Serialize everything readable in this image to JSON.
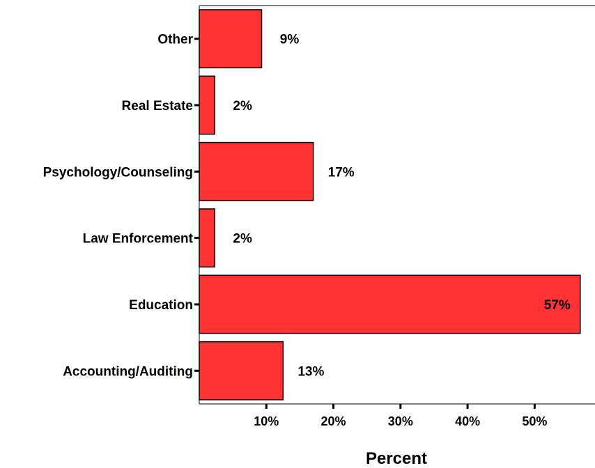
{
  "chart_data": {
    "type": "bar",
    "orientation": "horizontal",
    "categories": [
      "Other",
      "Real Estate",
      "Psychology/Counseling",
      "Law Enforcement",
      "Education",
      "Accounting/Auditing"
    ],
    "values": [
      9.3,
      2.3,
      17.0,
      2.3,
      56.8,
      12.5
    ],
    "data_labels": [
      "9%",
      "2%",
      "17%",
      "2%",
      "57%",
      "13%"
    ],
    "xlabel": "Percent",
    "ylabel": "",
    "xlim": [
      0,
      59
    ],
    "xticks": [
      10,
      20,
      30,
      40,
      50
    ],
    "xtick_labels": [
      "10%",
      "20%",
      "30%",
      "40%",
      "50%"
    ],
    "grid": false,
    "legend": "none",
    "bar_color": "#ff3333",
    "bar_outline_color": "#000000"
  }
}
